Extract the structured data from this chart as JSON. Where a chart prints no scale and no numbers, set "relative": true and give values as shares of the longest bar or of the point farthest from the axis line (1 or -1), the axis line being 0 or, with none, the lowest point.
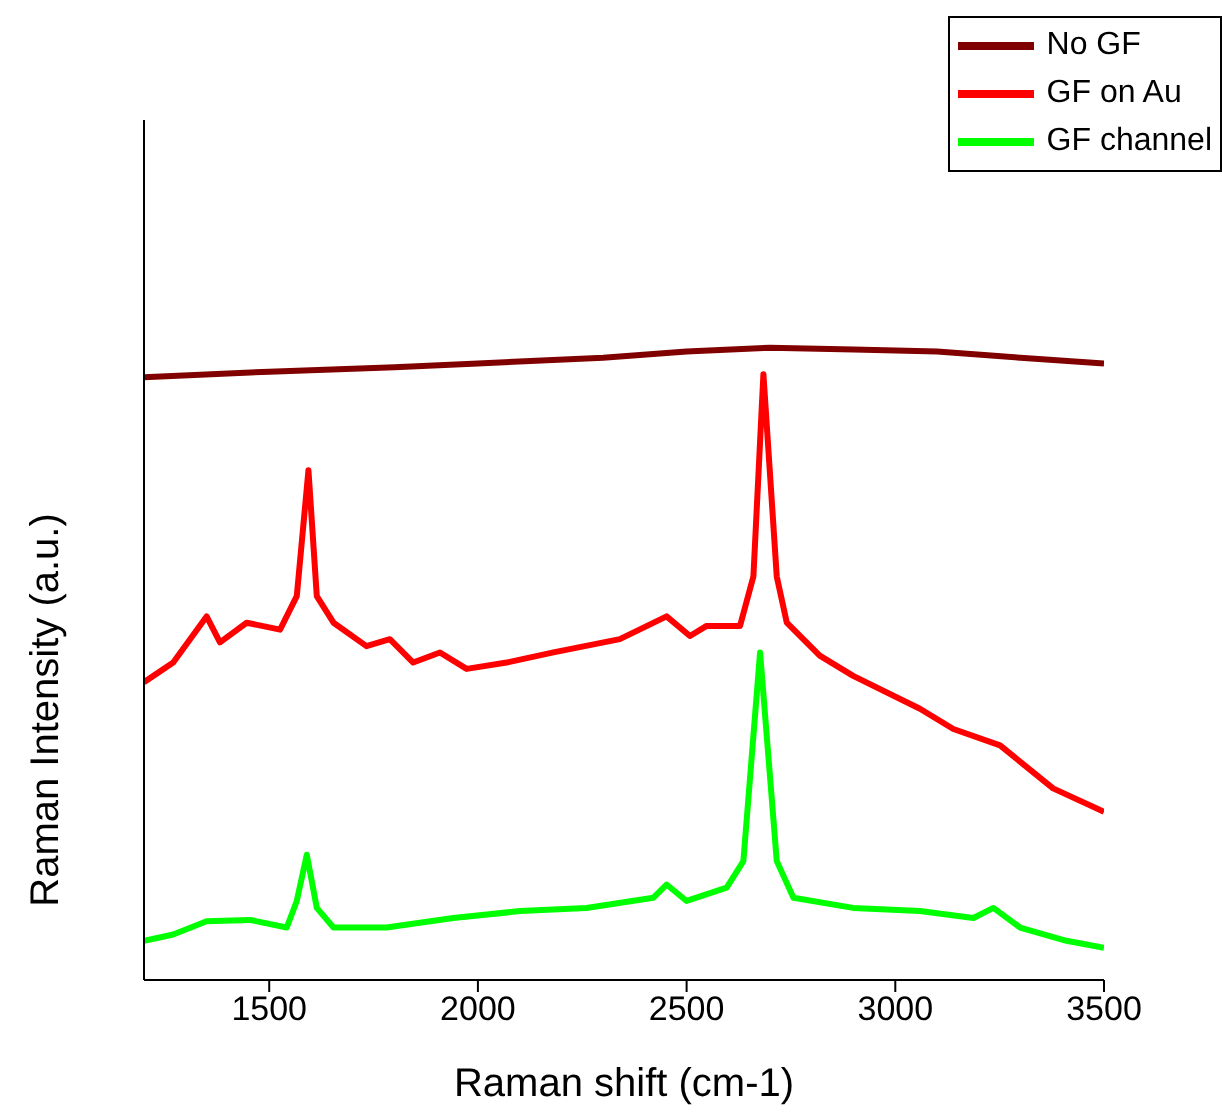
{
  "chart_data": {
    "type": "line",
    "relative": true,
    "xlabel": "Raman shift (cm-1)",
    "ylabel": "Raman Intensity (a.u.)",
    "xlim": [
      1200,
      3500
    ],
    "xticks": [
      1500,
      2000,
      2500,
      3000,
      3500
    ],
    "legend": "top right",
    "grid": false,
    "marker": "none",
    "line_style": "solid",
    "series": [
      {
        "name": "No GF",
        "color": "#800000",
        "x": [
          1200,
          1500,
          1800,
          2000,
          2300,
          2500,
          2700,
          2900,
          3100,
          3300,
          3500
        ],
        "values": [
          0.953,
          0.962,
          0.969,
          0.975,
          0.984,
          0.994,
          1.0,
          0.997,
          0.994,
          0.984,
          0.975
        ]
      },
      {
        "name": "GF on Au",
        "color": "#ff0000",
        "x": [
          1200,
          1270,
          1350,
          1382,
          1446,
          1526,
          1566,
          1594,
          1614,
          1654,
          1733,
          1789,
          1845,
          1909,
          1973,
          2069,
          2181,
          2340,
          2452,
          2508,
          2548,
          2628,
          2660,
          2684,
          2716,
          2740,
          2819,
          2899,
          3059,
          3139,
          3251,
          3378,
          3500
        ],
        "values": [
          0.471,
          0.502,
          0.575,
          0.534,
          0.565,
          0.554,
          0.607,
          0.806,
          0.607,
          0.565,
          0.528,
          0.539,
          0.502,
          0.518,
          0.492,
          0.502,
          0.518,
          0.539,
          0.575,
          0.544,
          0.56,
          0.56,
          0.638,
          0.958,
          0.638,
          0.565,
          0.513,
          0.481,
          0.429,
          0.397,
          0.371,
          0.303,
          0.266
        ]
      },
      {
        "name": "GF channel",
        "color": "#00ff00",
        "x": [
          1200,
          1270,
          1350,
          1454,
          1542,
          1566,
          1590,
          1614,
          1654,
          1781,
          1941,
          2101,
          2260,
          2420,
          2452,
          2500,
          2596,
          2636,
          2676,
          2716,
          2756,
          2899,
          3059,
          3187,
          3235,
          3299,
          3410,
          3500
        ],
        "values": [
          0.062,
          0.072,
          0.093,
          0.095,
          0.083,
          0.125,
          0.198,
          0.114,
          0.083,
          0.083,
          0.098,
          0.109,
          0.114,
          0.13,
          0.151,
          0.125,
          0.146,
          0.188,
          0.518,
          0.188,
          0.13,
          0.114,
          0.109,
          0.098,
          0.114,
          0.083,
          0.062,
          0.051
        ]
      }
    ]
  }
}
